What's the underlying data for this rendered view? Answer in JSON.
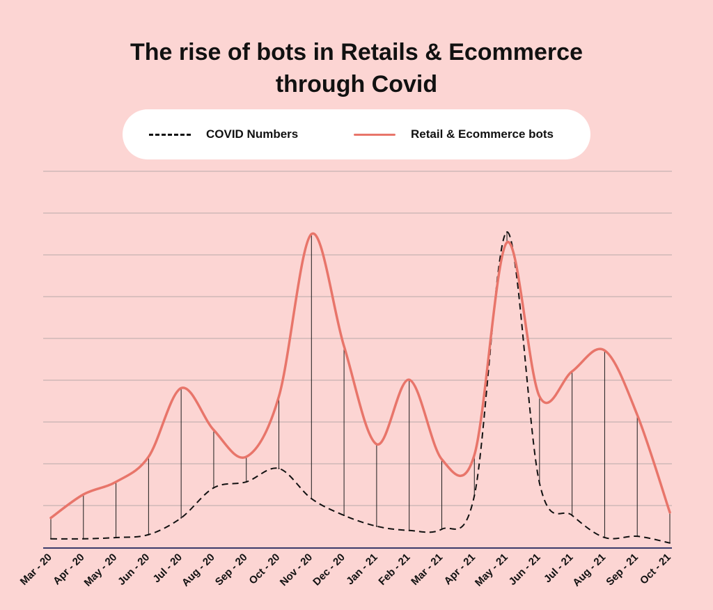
{
  "title_lines": [
    "The rise of bots in Retails & Ecommerce",
    "through Covid"
  ],
  "legend": {
    "covid_label": "COVID Numbers",
    "bots_label": "Retail & Ecommerce bots"
  },
  "colors": {
    "background": "#fcd5d3",
    "bots_line": "#e8756a",
    "covid_line": "#111111",
    "gridline": "#b9a9a9",
    "baseline": "#3a3a6a"
  },
  "chart_data": {
    "type": "line",
    "categories": [
      "Mar - 20",
      "Apr - 20",
      "May - 20",
      "Jun - 20",
      "Jul - 20",
      "Aug - 20",
      "Sep - 20",
      "Oct - 20",
      "Nov - 20",
      "Dec - 20",
      "Jan - 21",
      "Feb - 21",
      "Mar - 21",
      "Apr - 21",
      "May - 21",
      "Jun - 21",
      "Jul - 21",
      "Aug - 21",
      "Sep - 21",
      "Oct - 21"
    ],
    "series": [
      {
        "name": "COVID Numbers",
        "style": "dashed",
        "values": [
          0.22,
          0.22,
          0.25,
          0.32,
          0.72,
          1.44,
          1.58,
          1.9,
          1.18,
          0.78,
          0.52,
          0.42,
          0.45,
          1.25,
          7.55,
          1.55,
          0.78,
          0.25,
          0.28,
          0.12
        ]
      },
      {
        "name": "Retail & Ecommerce bots",
        "style": "solid",
        "values": [
          0.72,
          1.28,
          1.58,
          2.18,
          3.82,
          2.82,
          2.18,
          3.62,
          7.5,
          4.82,
          2.48,
          4.02,
          2.12,
          2.22,
          7.3,
          3.62,
          4.22,
          4.72,
          3.18,
          0.85
        ]
      }
    ],
    "ylim": [
      0,
      9
    ],
    "grid": true,
    "legend_position": "top-center",
    "droplines": true
  }
}
